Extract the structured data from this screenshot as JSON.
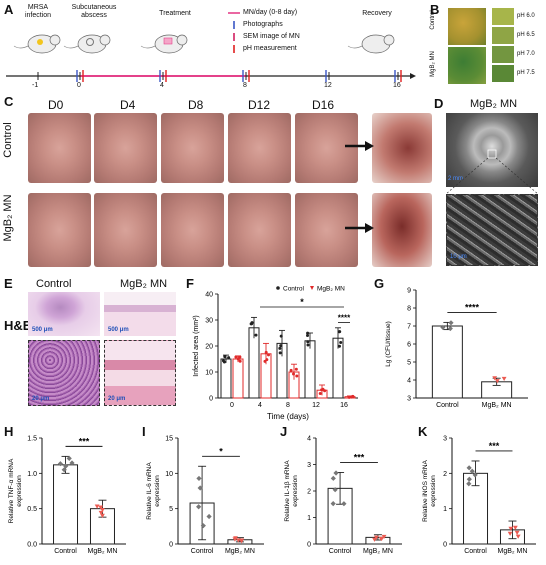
{
  "panelA": {
    "label": "A",
    "stages": [
      "MRSA\ninfection",
      "Subcutaneous\nabscess",
      "Treatment",
      "Recovery"
    ],
    "legend": [
      "MN/day (0-8 day)",
      "Photographs",
      "SEM image of MN",
      "pH measurement"
    ],
    "ticks": [
      "-1",
      "0",
      "4",
      "8",
      "12",
      "16"
    ],
    "colors": {
      "mn": "#e4418a",
      "photo": "#3a56c4",
      "sem": "#d12060",
      "ph": "#e02020"
    }
  },
  "panelB": {
    "label": "B",
    "rows": [
      "Control",
      "MgB₂ MN"
    ],
    "ph_labels": [
      "pH 6.0",
      "pH 6.5",
      "pH 7.0",
      "pH 7.5"
    ],
    "ph_colors": [
      "#a7b54a",
      "#8fa545",
      "#739640",
      "#5a8836"
    ]
  },
  "panelC": {
    "label": "C",
    "days": [
      "D0",
      "D4",
      "D8",
      "D12",
      "D16"
    ],
    "rows": [
      "Control",
      "MgB₂ MN"
    ]
  },
  "panelD": {
    "label": "D",
    "title": "MgB₂ MN",
    "scale1": "2 mm",
    "scale2": "10 μm"
  },
  "panelE": {
    "label": "E",
    "cols": [
      "Control",
      "MgB₂ MN"
    ],
    "row": "H&E",
    "scale_big": "500 μm",
    "scale_small": "20 μm"
  },
  "panelF": {
    "label": "F"
  },
  "panelG": {
    "label": "G"
  },
  "panelH": {
    "label": "H"
  },
  "panelI": {
    "label": "I"
  },
  "panelJ": {
    "label": "J"
  },
  "panelK": {
    "label": "K"
  },
  "chart_data": [
    {
      "id": "F",
      "type": "bar",
      "ylabel": "Infected area (mm²)",
      "xlabel": "Time (days)",
      "categories": [
        "0",
        "4",
        "8",
        "12",
        "16"
      ],
      "ylim": [
        0,
        40
      ],
      "yticks": [
        0,
        10,
        20,
        30,
        40
      ],
      "series": [
        {
          "name": "Control",
          "color": "#222222",
          "values": [
            15,
            27,
            21,
            22,
            23
          ],
          "err": [
            1.5,
            4,
            5,
            3,
            4
          ]
        },
        {
          "name": "MgB₂ MN",
          "color": "#e02a2a",
          "values": [
            15,
            17,
            10,
            3,
            0.5
          ],
          "err": [
            1.2,
            4,
            3,
            2,
            0.3
          ]
        }
      ],
      "annotations": [
        "*",
        "****"
      ]
    },
    {
      "id": "G",
      "type": "bar",
      "ylabel": "Lg (CFU/tissue)",
      "categories": [
        "Control",
        "MgB₂ MN"
      ],
      "ylim": [
        3,
        9
      ],
      "yticks": [
        3,
        4,
        5,
        6,
        7,
        8,
        9
      ],
      "values": [
        7.0,
        3.9
      ],
      "err": [
        0.2,
        0.2
      ],
      "annotations": [
        "****"
      ]
    },
    {
      "id": "H",
      "type": "bar",
      "ylabel": "Relative TNF-α mRNA expression",
      "categories": [
        "Control",
        "MgB₂ MN"
      ],
      "ylim": [
        0,
        1.5
      ],
      "yticks": [
        0.0,
        0.5,
        1.0,
        1.5
      ],
      "values": [
        1.12,
        0.5
      ],
      "err": [
        0.12,
        0.12
      ],
      "annotations": [
        "***"
      ]
    },
    {
      "id": "I",
      "type": "bar",
      "ylabel": "Relative IL-6 mRNA expression",
      "categories": [
        "Control",
        "MgB₂ MN"
      ],
      "ylim": [
        0,
        15
      ],
      "yticks": [
        0,
        5,
        10,
        15
      ],
      "values": [
        5.8,
        0.6
      ],
      "err": [
        5.2,
        0.3
      ],
      "annotations": [
        "*"
      ]
    },
    {
      "id": "J",
      "type": "bar",
      "ylabel": "Relative IL-1β mRNA expression",
      "categories": [
        "Control",
        "MgB₂ MN"
      ],
      "ylim": [
        0,
        4
      ],
      "yticks": [
        0,
        1,
        2,
        3,
        4
      ],
      "values": [
        2.1,
        0.25
      ],
      "err": [
        0.6,
        0.1
      ],
      "annotations": [
        "***"
      ]
    },
    {
      "id": "K",
      "type": "bar",
      "ylabel": "Relative iNOS mRNA expression",
      "categories": [
        "Control",
        "MgB₂ MN"
      ],
      "ylim": [
        0,
        3
      ],
      "yticks": [
        0,
        1,
        2,
        3
      ],
      "values": [
        2.0,
        0.4
      ],
      "err": [
        0.35,
        0.25
      ],
      "annotations": [
        "***"
      ]
    }
  ]
}
